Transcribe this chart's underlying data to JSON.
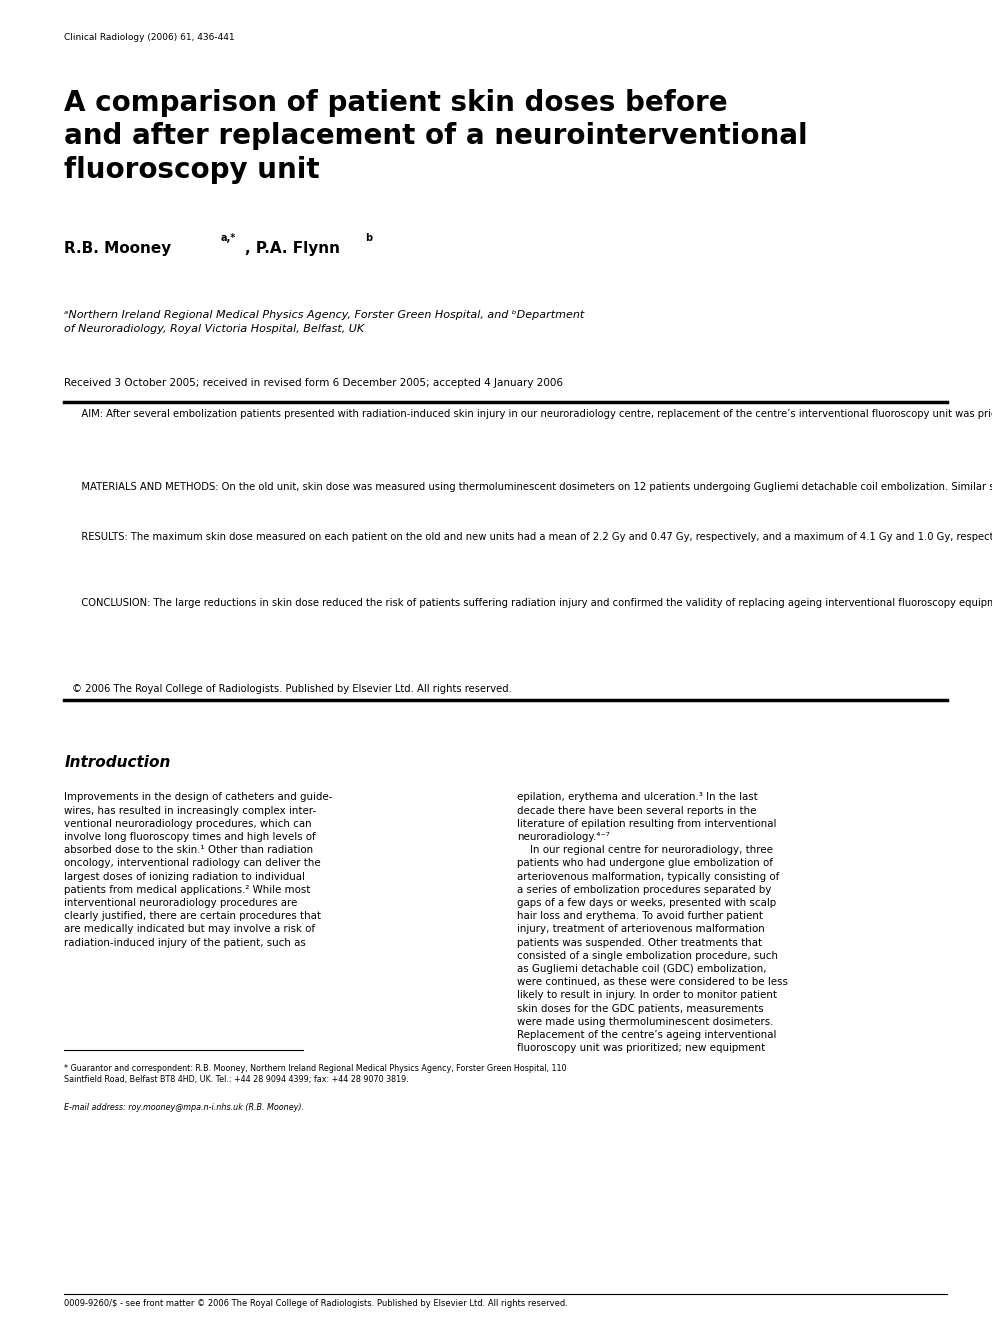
{
  "journal_ref": "Clinical Radiology (2006) 61, 436-441",
  "title": "A comparison of patient skin doses before\nand after replacement of a neurointerventional\nfluoroscopy unit",
  "affiliation": "aNorthern Ireland Regional Medical Physics Agency, Forster Green Hospital, and bDepartment\nof Neuroradiology, Royal Victoria Hospital, Belfast, UK",
  "received": "Received 3 October 2005; received in revised form 6 December 2005; accepted 4 January 2006",
  "abstract_aim": "   AIM: After several embolization patients presented with radiation-induced skin injury in our neuroradiology centre, replacement of the centre’s interventional fluoroscopy unit was prioritized. The aims of the present study were to compare the maximum skin dose delivered to each patient by the old and new units, to devise a method of estimating skin dose from the displayed dose-area product and to set local reference doses.",
  "abstract_methods": "   MATERIALS AND METHODS: On the old unit, skin dose was measured using thermoluminescent dosimeters on 12 patients undergoing Gugliemi detachable coil embolization. Similar skin dose measurements were undertaken and the dose-area product was recorded for a further 12 patients on the new unit.",
  "abstract_results": "   RESULTS: The maximum skin dose measured on each patient on the old and new units had a mean of 2.2 Gy and 0.47 Gy, respectively, and a maximum of 4.1 Gy and 1.0 Gy, respectively. Maximum dose delivered to patients’ skin by the new equipment was less than a quarter of the dose from the old equipment (p<0.0001).",
  "abstract_conclusion": "   CONCLUSION: The large reductions in skin dose reduced the risk of patients suffering radiation injury and confirmed the validity of replacing ageing interventional fluoroscopy equipment with modern equipment that incorporates dose management systems. As patient skin dose was correlated with dose-area product, local reference dose levels were set in terms of dose-area product; this enabled the operator to monitor the likely maximum patient skin dose during embolization procedures. Other centres could use a similar method to set their own reference doses.",
  "copyright": "© 2006 The Royal College of Radiologists. Published by Elsevier Ltd. All rights reserved.",
  "intro_heading": "Introduction",
  "intro_text_left": "Improvements in the design of catheters and guide-\nwires, has resulted in increasingly complex inter-\nventional neuroradiology procedures, which can\ninvolve long fluoroscopy times and high levels of\nabsorbed dose to the skin.¹ Other than radiation\noncology, interventional radiology can deliver the\nlargest doses of ionizing radiation to individual\npatients from medical applications.² While most\ninterventional neuroradiology procedures are\nclearly justified, there are certain procedures that\nare medically indicated but may involve a risk of\nradiation-induced injury of the patient, such as",
  "intro_text_right": "epilation, erythema and ulceration.³ In the last\ndecade there have been several reports in the\nliterature of epilation resulting from interventional\nneuroradiology.⁴⁻⁷\n    In our regional centre for neuroradiology, three\npatients who had undergone glue embolization of\narteriovenous malformation, typically consisting of\na series of embolization procedures separated by\ngaps of a few days or weeks, presented with scalp\nhair loss and erythema. To avoid further patient\ninjury, treatment of arteriovenous malformation\npatients was suspended. Other treatments that\nconsisted of a single embolization procedure, such\nas Gugliemi detachable coil (GDC) embolization,\nwere continued, as these were considered to be less\nlikely to result in injury. In order to monitor patient\nskin doses for the GDC patients, measurements\nwere made using thermoluminescent dosimeters.\nReplacement of the centre’s ageing interventional\nfluoroscopy unit was prioritized; new equipment",
  "footnote_star": "* Guarantor and correspondent: R.B. Mooney, Northern Ireland Regional Medical Physics Agency, Forster Green Hospital, 110\nSaintfield Road, Belfast BT8 4HD, UK. Tel.: +44 28 9094 4399; fax: +44 28 9070 3819.",
  "footnote_email": "E-mail address: roy.mooney@mpa.n-i.nhs.uk (R.B. Mooney).",
  "footer": "0009-9260/$ - see front matter © 2006 The Royal College of Radiologists. Published by Elsevier Ltd. All rights reserved.",
  "bg_color": "#ffffff",
  "text_color": "#000000"
}
